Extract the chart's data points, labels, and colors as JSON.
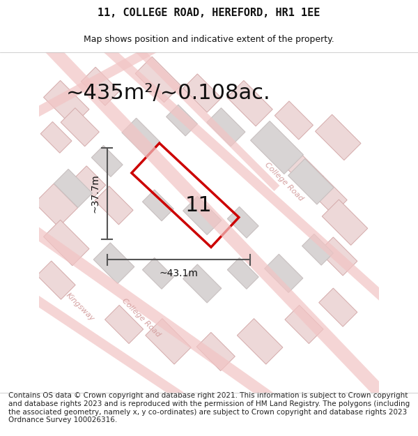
{
  "title_line1": "11, COLLEGE ROAD, HEREFORD, HR1 1EE",
  "title_line2": "Map shows position and indicative extent of the property.",
  "area_text": "~435m²/~0.108ac.",
  "label_number": "11",
  "dim_width": "~43.1m",
  "dim_height": "~37.7m",
  "footer_text": "Contains OS data © Crown copyright and database right 2021. This information is subject to Crown copyright and database rights 2023 and is reproduced with the permission of HM Land Registry. The polygons (including the associated geometry, namely x, y co-ordinates) are subject to Crown copyright and database rights 2023 Ordnance Survey 100026316.",
  "bg_color": "#f5f3f3",
  "map_bg_color": "#f0eeee",
  "plot_outline_color": "#cc0000",
  "street_color": "#f2c4c4",
  "building_fill": "#d8d4d4",
  "building_stroke": "#c8c0c0",
  "road_label_color": "#d4a0a0",
  "dim_line_color": "#555555",
  "text_color": "#111111",
  "title_fontsize": 11,
  "subtitle_fontsize": 9,
  "area_fontsize": 22,
  "label_fontsize": 22,
  "dim_fontsize": 10,
  "footer_fontsize": 7.5
}
